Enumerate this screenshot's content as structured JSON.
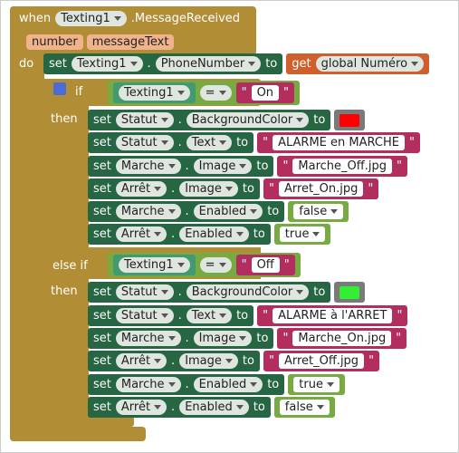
{
  "event": {
    "when": "when",
    "component": "Texting1",
    "event": ".MessageReceived",
    "params": [
      "number",
      "messageText"
    ],
    "do": "do"
  },
  "first_statement": {
    "set": "set",
    "component": "Texting1",
    "dot": ".",
    "property": "PhoneNumber",
    "to": "to",
    "get": "get",
    "variable": "global Numéro"
  },
  "branches": [
    {
      "keyword": "if",
      "condition": {
        "component": "Texting1",
        "operator": "=",
        "open_quote": "\"",
        "text": "On",
        "close_quote": "\""
      },
      "then": "then",
      "statements": [
        {
          "set": "set",
          "component": "Statut",
          "dot": ".",
          "property": "BackgroundColor",
          "to": "to",
          "value": {
            "type": "color",
            "color": "#ff0000"
          }
        },
        {
          "set": "set",
          "component": "Statut",
          "dot": ".",
          "property": "Text",
          "to": "to",
          "value": {
            "type": "text",
            "open_quote": "\"",
            "text": "ALARME en MARCHE",
            "close_quote": "\""
          }
        },
        {
          "set": "set",
          "component": "Marche",
          "dot": ".",
          "property": "Image",
          "to": "to",
          "value": {
            "type": "text",
            "open_quote": "\"",
            "text": "Marche_Off.jpg",
            "close_quote": "\""
          }
        },
        {
          "set": "set",
          "component": "Arrêt",
          "dot": ".",
          "property": "Image",
          "to": "to",
          "value": {
            "type": "text",
            "open_quote": "\"",
            "text": "Arret_On.jpg",
            "close_quote": "\""
          }
        },
        {
          "set": "set",
          "component": "Marche",
          "dot": ".",
          "property": "Enabled",
          "to": "to",
          "value": {
            "type": "logic",
            "text": "false"
          }
        },
        {
          "set": "set",
          "component": "Arrêt",
          "dot": ".",
          "property": "Enabled",
          "to": "to",
          "value": {
            "type": "logic",
            "text": "true"
          }
        }
      ]
    },
    {
      "keyword": "else if",
      "condition": {
        "component": "Texting1",
        "operator": "=",
        "open_quote": "\"",
        "text": "Off",
        "close_quote": "\""
      },
      "then": "then",
      "statements": [
        {
          "set": "set",
          "component": "Statut",
          "dot": ".",
          "property": "BackgroundColor",
          "to": "to",
          "value": {
            "type": "color",
            "color": "#33ee33"
          }
        },
        {
          "set": "set",
          "component": "Statut",
          "dot": ".",
          "property": "Text",
          "to": "to",
          "value": {
            "type": "text",
            "open_quote": "\"",
            "text": "ALARME à l'ARRET",
            "close_quote": "\""
          }
        },
        {
          "set": "set",
          "component": "Marche",
          "dot": ".",
          "property": "Image",
          "to": "to",
          "value": {
            "type": "text",
            "open_quote": "\"",
            "text": "Marche_On.jpg",
            "close_quote": "\""
          }
        },
        {
          "set": "set",
          "component": "Arrêt",
          "dot": ".",
          "property": "Image",
          "to": "to",
          "value": {
            "type": "text",
            "open_quote": "\"",
            "text": "Arret_Off.jpg",
            "close_quote": "\""
          }
        },
        {
          "set": "set",
          "component": "Marche",
          "dot": ".",
          "property": "Enabled",
          "to": "to",
          "value": {
            "type": "logic",
            "text": "true"
          }
        },
        {
          "set": "set",
          "component": "Arrêt",
          "dot": ".",
          "property": "Enabled",
          "to": "to",
          "value": {
            "type": "logic",
            "text": "false"
          }
        }
      ]
    }
  ]
}
